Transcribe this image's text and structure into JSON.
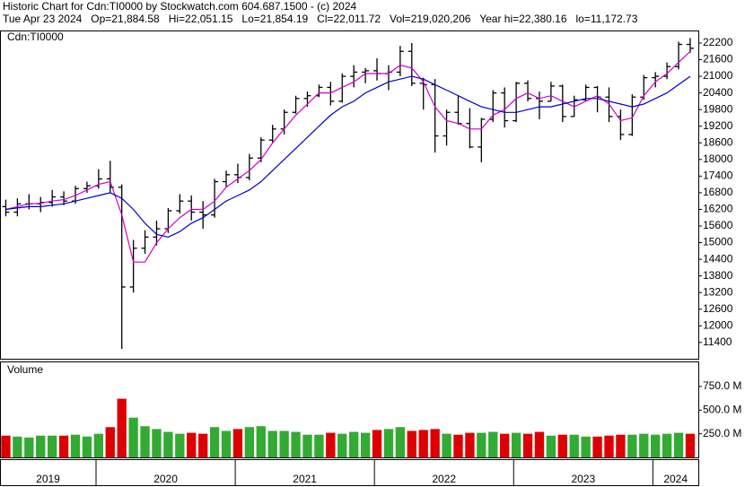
{
  "header": {
    "title": "Historic Chart for Cdn:TI0000 by Stockwatch.com 604.687.1500 - (c) 2024",
    "quote": "Tue Apr 23 2024   Op=21,884.58   Hi=22,051.15   Lo=21,854.19   Cl=22,011.72   Vol=219,020,206   Year hi=22,380.16   lo=11,172.73"
  },
  "chart_data": [
    {
      "type": "ohlc",
      "label": "Cdn:TI0000",
      "xlim": [
        0,
        60.2
      ],
      "open": [
        16300,
        16100,
        16400,
        16400,
        16450,
        16650,
        16500,
        16950,
        17050,
        17300,
        17000,
        13400,
        14800,
        15200,
        15500,
        16150,
        16500,
        16100,
        16000,
        17200,
        17450,
        17350,
        18050,
        18700,
        19100,
        19700,
        20200,
        20300,
        20600,
        20100,
        21000,
        21150,
        21200,
        21100,
        21150,
        21900,
        20750,
        20700,
        18850,
        19700,
        19300,
        18450,
        19450,
        20400,
        19400,
        20750,
        20200,
        20100,
        20650,
        19550,
        20150,
        20600,
        20250,
        19550,
        18900,
        20250,
        20950,
        21000,
        21350,
        22150
      ],
      "high": [
        16550,
        16600,
        16750,
        16650,
        16900,
        16850,
        17050,
        17200,
        17650,
        17950,
        17100,
        15100,
        15450,
        15800,
        16250,
        16750,
        16700,
        16500,
        17300,
        17600,
        17850,
        18200,
        18800,
        19250,
        19800,
        20300,
        20450,
        20700,
        20800,
        21100,
        21400,
        21300,
        21650,
        21400,
        22100,
        22200,
        20950,
        20900,
        19800,
        20300,
        19850,
        19500,
        20500,
        20600,
        20800,
        20850,
        20450,
        20800,
        20700,
        20300,
        20700,
        20650,
        20600,
        19800,
        20350,
        21050,
        21150,
        21500,
        22250,
        22380
      ],
      "low": [
        15950,
        15950,
        16200,
        16100,
        16300,
        16350,
        16400,
        16800,
        16950,
        16800,
        11170,
        13200,
        14600,
        14900,
        15350,
        16050,
        15800,
        15500,
        15900,
        17000,
        17150,
        17250,
        17900,
        18600,
        18900,
        19650,
        19900,
        20250,
        19950,
        20050,
        20600,
        20750,
        20850,
        20500,
        21000,
        20650,
        19800,
        18250,
        18500,
        19250,
        18400,
        17900,
        19350,
        19150,
        19350,
        20100,
        19450,
        20100,
        19350,
        19550,
        20100,
        19700,
        19350,
        18700,
        18850,
        20150,
        20600,
        20900,
        21250,
        21850
      ],
      "close": [
        16100,
        16400,
        16400,
        16450,
        16650,
        16500,
        16950,
        17050,
        17300,
        17000,
        13400,
        14800,
        15200,
        15500,
        16150,
        16500,
        16100,
        16000,
        17200,
        17450,
        17350,
        18050,
        18700,
        19100,
        19700,
        20200,
        20300,
        20600,
        20100,
        21000,
        21150,
        21200,
        21100,
        21150,
        21900,
        20750,
        20700,
        18850,
        19700,
        19300,
        18450,
        19450,
        20400,
        19400,
        20750,
        20200,
        20100,
        20650,
        19550,
        20150,
        20600,
        20250,
        19550,
        18900,
        20250,
        20950,
        21000,
        21350,
        22150,
        22010
      ],
      "series": [
        {
          "color": "#cc00cc",
          "values": [
            16200,
            16300,
            16400,
            16420,
            16500,
            16550,
            16700,
            16900,
            17100,
            17200,
            16000,
            14300,
            14300,
            15000,
            15500,
            15900,
            16200,
            16200,
            16500,
            17000,
            17300,
            17600,
            18000,
            18600,
            19100,
            19600,
            20000,
            20400,
            20400,
            20600,
            20800,
            21100,
            21100,
            21100,
            21400,
            21300,
            20800,
            19900,
            19400,
            19300,
            19100,
            19100,
            19600,
            19800,
            20200,
            20400,
            20200,
            20300,
            20100,
            19900,
            20100,
            20300,
            20000,
            19400,
            19500,
            20300,
            20800,
            21100,
            21500,
            21900
          ]
        },
        {
          "color": "#0000cc",
          "values": [
            16200,
            16250,
            16300,
            16300,
            16350,
            16400,
            16500,
            16600,
            16700,
            16800,
            16600,
            16200,
            15700,
            15300,
            15200,
            15400,
            15700,
            15900,
            16200,
            16500,
            16700,
            16900,
            17200,
            17600,
            18000,
            18400,
            18800,
            19200,
            19600,
            19900,
            20100,
            20400,
            20600,
            20800,
            20900,
            21000,
            20900,
            20700,
            20500,
            20300,
            20100,
            19900,
            19800,
            19700,
            19700,
            19800,
            19900,
            19900,
            20000,
            20100,
            20200,
            20200,
            20100,
            20000,
            19900,
            20000,
            20200,
            20400,
            20700,
            21000
          ]
        }
      ],
      "ylim": [
        10780,
        22620
      ],
      "yticks": [
        11400,
        12000,
        12600,
        13200,
        13800,
        14400,
        15000,
        15600,
        16200,
        16800,
        17400,
        18000,
        18600,
        19200,
        19800,
        20400,
        21000,
        21600,
        22200
      ]
    },
    {
      "type": "bar",
      "label": "Volume",
      "xlim": [
        0,
        60.2
      ],
      "up_color": "#33aa33",
      "down_color": "#dd0000",
      "values": [
        230,
        220,
        210,
        230,
        230,
        230,
        240,
        220,
        250,
        320,
        620,
        420,
        330,
        300,
        270,
        250,
        260,
        250,
        320,
        280,
        300,
        320,
        330,
        280,
        280,
        270,
        240,
        240,
        260,
        250,
        270,
        260,
        290,
        300,
        320,
        280,
        290,
        300,
        250,
        240,
        260,
        260,
        270,
        250,
        260,
        250,
        270,
        230,
        240,
        240,
        220,
        220,
        230,
        240,
        240,
        250,
        240,
        250,
        260,
        250
      ],
      "ylim": [
        0,
        1005
      ],
      "yticks": [
        {
          "value": 250,
          "label": "250.0 M"
        },
        {
          "value": 500,
          "label": "500.0 M"
        },
        {
          "value": 750,
          "label": "750.0 M"
        }
      ],
      "xticks": [
        {
          "value": -3.72,
          "label": "2019"
        },
        {
          "value": 8.28,
          "label": "2020"
        },
        {
          "value": 20.28,
          "label": "2021"
        },
        {
          "value": 32.28,
          "label": "2022"
        },
        {
          "value": 44.28,
          "label": "2023"
        },
        {
          "value": 56.28,
          "label": "2024"
        }
      ]
    }
  ]
}
